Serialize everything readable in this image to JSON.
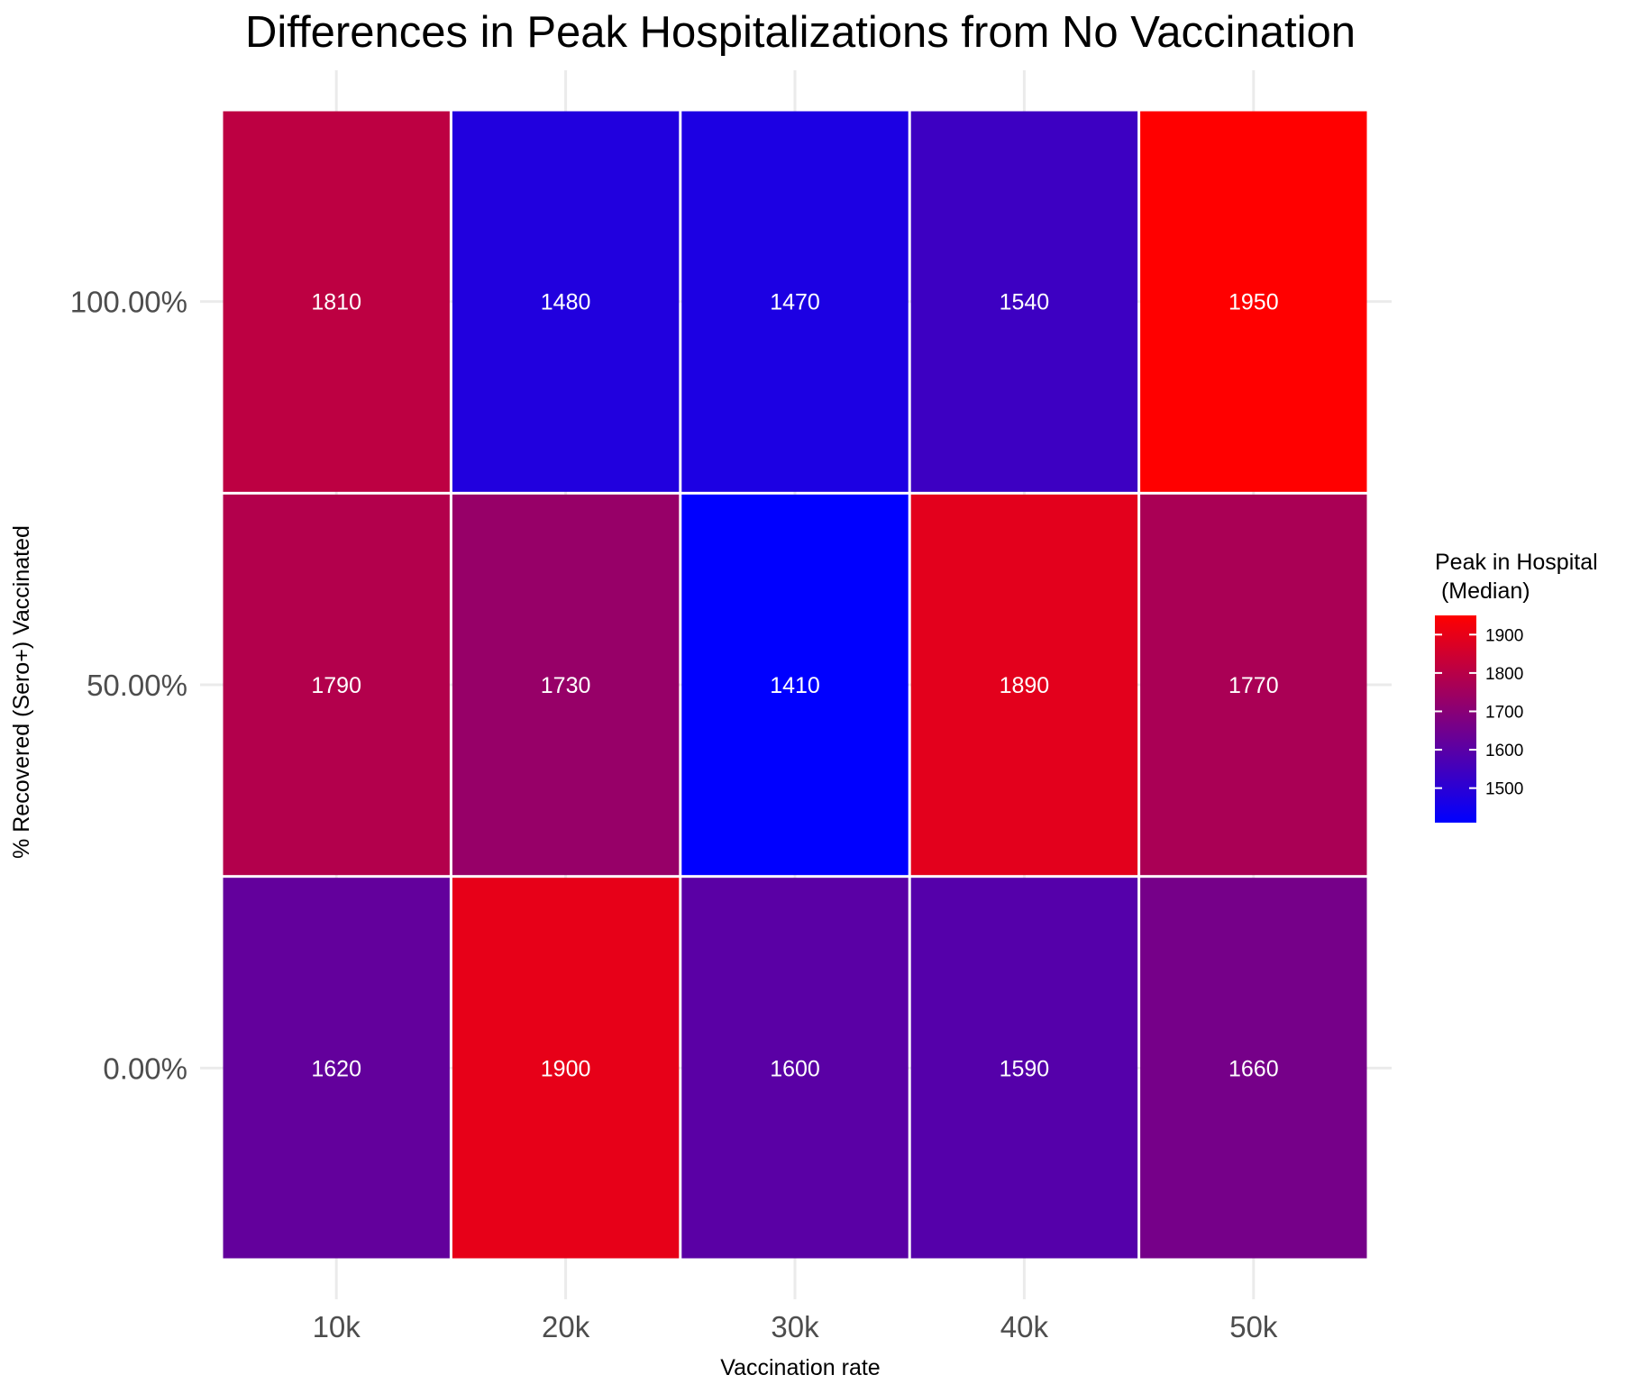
{
  "chart_data": {
    "type": "heatmap",
    "title": "Differences in Peak Hospitalizations from No Vaccination",
    "xlabel": "Vaccination rate",
    "ylabel": "% Recovered (Sero+) Vaccinated",
    "x_categories": [
      "10k",
      "20k",
      "30k",
      "40k",
      "50k"
    ],
    "y_categories": [
      "0.00%",
      "50.00%",
      "100.00%"
    ],
    "values": [
      [
        1620,
        1900,
        1600,
        1590,
        1660
      ],
      [
        1790,
        1730,
        1410,
        1890,
        1770
      ],
      [
        1810,
        1480,
        1470,
        1540,
        1950
      ]
    ],
    "color_scale": {
      "low": "#0000ff",
      "high": "#ff0000",
      "min": 1410,
      "max": 1950
    },
    "legend": {
      "title_lines": [
        "Peak in Hospital",
        " (Median)"
      ],
      "ticks": [
        1500,
        1600,
        1700,
        1800,
        1900
      ],
      "placement": "right"
    },
    "grid": true
  }
}
